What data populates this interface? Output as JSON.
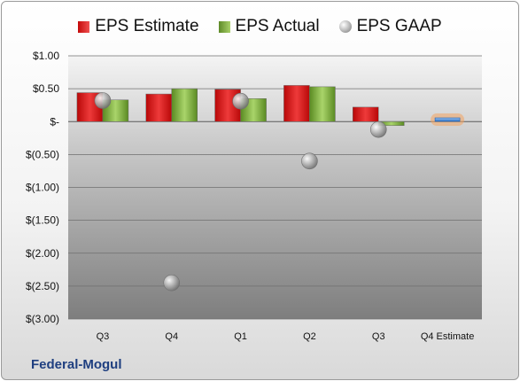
{
  "chart_data": {
    "type": "bar",
    "categories": [
      "Q3",
      "Q4",
      "Q1",
      "Q2",
      "Q3",
      "Q4 Estimate"
    ],
    "series": [
      {
        "name": "EPS Estimate",
        "kind": "bar",
        "color": "#d01818",
        "values": [
          0.44,
          0.42,
          0.49,
          0.55,
          0.22,
          null
        ]
      },
      {
        "name": "EPS Actual",
        "kind": "bar",
        "color": "#8cbb4f",
        "values": [
          0.33,
          0.5,
          0.35,
          0.53,
          -0.06,
          null
        ]
      },
      {
        "name": "EPS GAAP",
        "kind": "marker",
        "color": "#a0a0a0",
        "values": [
          0.32,
          -2.45,
          0.31,
          -0.6,
          -0.12,
          null
        ]
      }
    ],
    "estimate": {
      "category": "Q4 Estimate",
      "value": 0.03,
      "color": "#1a5fb4",
      "glow": "#f4a460"
    },
    "yticks": [
      1.0,
      0.5,
      0,
      -0.5,
      -1.0,
      -1.5,
      -2.0,
      -2.5,
      -3.0
    ],
    "ytick_labels": [
      "$1.00",
      "$0.50",
      "$-",
      "$(0.50)",
      "$(1.00)",
      "$(1.50)",
      "$(2.00)",
      "$(2.50)",
      "$(3.00)"
    ],
    "ylim": [
      -3.0,
      1.0
    ],
    "grid": true,
    "legend_position": "top",
    "xlabel": "",
    "ylabel": ""
  },
  "footer": {
    "company": "Federal-Mogul"
  }
}
